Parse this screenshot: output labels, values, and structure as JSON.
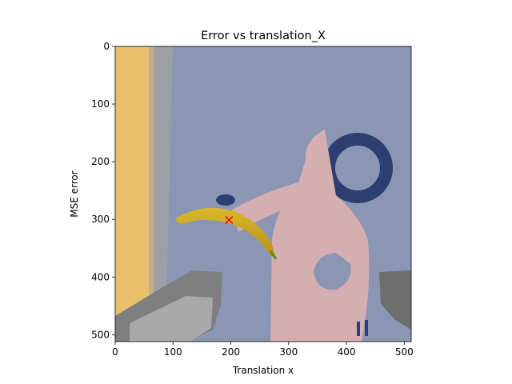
{
  "chart_data": {
    "type": "scatter",
    "title": "Error vs translation_X",
    "xlabel": "Translation x",
    "ylabel": "MSE error",
    "xlim": [
      0,
      512
    ],
    "ylim": [
      512,
      0
    ],
    "x_ticks": [
      0,
      100,
      200,
      300,
      400,
      500
    ],
    "y_ticks": [
      0,
      100,
      200,
      300,
      400,
      500
    ],
    "background": "image",
    "grid": false,
    "series": [
      {
        "x": [
          197
        ],
        "y": [
          301
        ],
        "marker": "x",
        "color": "#ff0000"
      }
    ]
  }
}
